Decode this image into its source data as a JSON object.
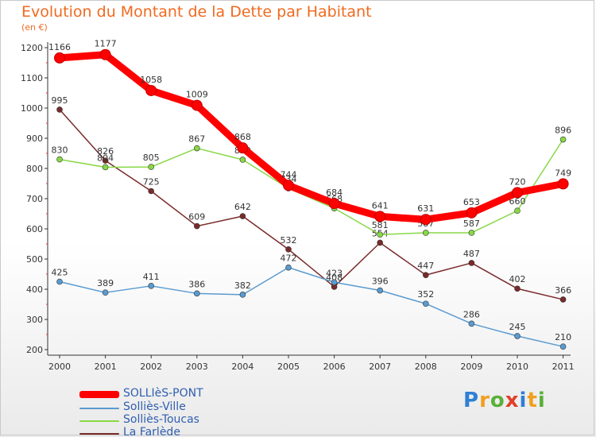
{
  "title": "Evolution du Montant de la Dette par Habitant",
  "subtitle": "(en €)",
  "logo": "Proxiti",
  "chart_data": {
    "type": "line",
    "categories": [
      "2000",
      "2001",
      "2002",
      "2003",
      "2004",
      "2005",
      "2006",
      "2007",
      "2008",
      "2009",
      "2010",
      "2011"
    ],
    "ylim": [
      200,
      1200
    ],
    "yticks": [
      200,
      300,
      400,
      500,
      600,
      700,
      800,
      900,
      1000,
      1100,
      1200
    ],
    "grid": false,
    "legend_placement": "bottom-left",
    "series": [
      {
        "name": "SOLLIèS-PONT",
        "color": "#ff0000",
        "values": [
          1166,
          1177,
          1058,
          1009,
          868,
          744,
          684,
          641,
          631,
          653,
          720,
          749
        ]
      },
      {
        "name": "Solliès-Ville",
        "color": "#5a9bd0",
        "values": [
          425,
          389,
          411,
          386,
          382,
          472,
          423,
          396,
          352,
          286,
          245,
          210
        ]
      },
      {
        "name": "Solliès-Toucas",
        "color": "#88d846",
        "values": [
          830,
          804,
          805,
          867,
          829,
          734,
          668,
          581,
          587,
          587,
          660,
          896
        ]
      },
      {
        "name": "La Farlède",
        "color": "#7a2a2a",
        "values": [
          995,
          826,
          725,
          609,
          642,
          532,
          408,
          554,
          447,
          487,
          402,
          366
        ]
      }
    ]
  }
}
